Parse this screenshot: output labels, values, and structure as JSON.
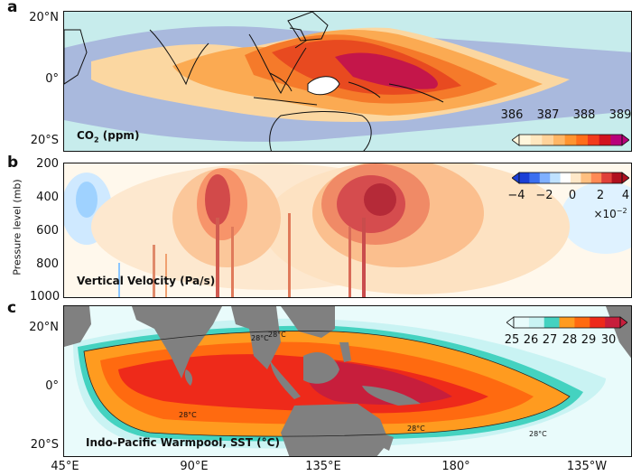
{
  "panels": {
    "a": {
      "letter": "a",
      "label_main": "CO",
      "label_sub": "2",
      "label_rest": " (ppm)",
      "lat_ticks": [
        "20°N",
        "0°",
        "20°S"
      ],
      "colorbar": {
        "ticks": [
          "386",
          "387",
          "388",
          "389"
        ],
        "colors": [
          "#fff6dc",
          "#ffe7bf",
          "#ffd29a",
          "#ffb666",
          "#ff9430",
          "#ff6e1a",
          "#f23b1c",
          "#d1121e",
          "#b8007a"
        ]
      }
    },
    "b": {
      "letter": "b",
      "label": "Vertical Velocity (Pa/s)",
      "y_title": "Pressure level (mb)",
      "p_ticks": [
        "200",
        "400",
        "600",
        "800",
        "1000"
      ],
      "colorbar": {
        "ticks": [
          "−4",
          "−2",
          "0",
          "2",
          "4"
        ],
        "exponent": "×10",
        "exponent_power": "−2",
        "colors": [
          "#1b3fd6",
          "#3b6ff0",
          "#7fb0ff",
          "#bfe2ff",
          "#ffffff",
          "#ffe8c8",
          "#ffbf80",
          "#ff8a55",
          "#e0413a",
          "#b0101e"
        ]
      }
    },
    "c": {
      "letter": "c",
      "label": "Indo-Pacific Warmpool, SST (°C)",
      "lat_ticks": [
        "20°N",
        "0°",
        "20°S"
      ],
      "isotherm_label": "28°C",
      "colorbar": {
        "ticks": [
          "25",
          "26",
          "27",
          "28",
          "29",
          "30"
        ],
        "colors": [
          "#e8fbfb",
          "#c9f3f3",
          "#44d2c0",
          "#ff9b1f",
          "#ff6a10",
          "#ee2a1a",
          "#c71e3c"
        ]
      }
    }
  },
  "lon_ticks": [
    "45°E",
    "90°E",
    "135°E",
    "180°",
    "135°W"
  ]
}
